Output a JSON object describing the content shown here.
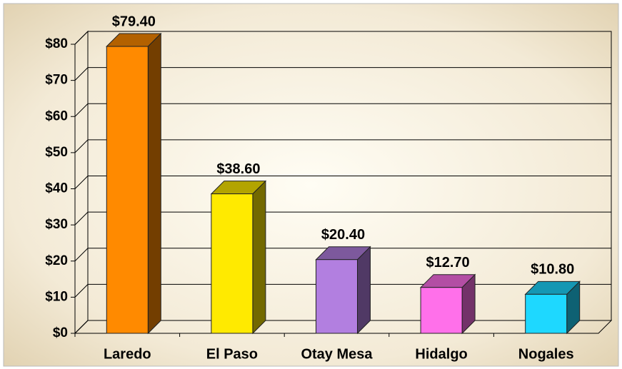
{
  "chart_data": {
    "type": "bar3d",
    "categories": [
      "Laredo",
      "El Paso",
      "Otay Mesa",
      "Hidalgo",
      "Nogales"
    ],
    "values": [
      79.4,
      38.6,
      20.4,
      12.7,
      10.8
    ],
    "value_labels": [
      "$79.40",
      "$38.60",
      "$20.40",
      "$12.70",
      "$10.80"
    ],
    "colors": [
      "#ff8a00",
      "#ffea00",
      "#b27fe0",
      "#ff70ea",
      "#1ed8ff"
    ],
    "ylim": [
      0,
      80
    ],
    "yticks": [
      {
        "value": 0,
        "label": "$0"
      },
      {
        "value": 10,
        "label": "$10"
      },
      {
        "value": 20,
        "label": "$20"
      },
      {
        "value": 30,
        "label": "$30"
      },
      {
        "value": 40,
        "label": "$40"
      },
      {
        "value": 50,
        "label": "$50"
      },
      {
        "value": 60,
        "label": "$60"
      },
      {
        "value": 70,
        "label": "$70"
      },
      {
        "value": 80,
        "label": "$80"
      }
    ],
    "grid": true
  }
}
